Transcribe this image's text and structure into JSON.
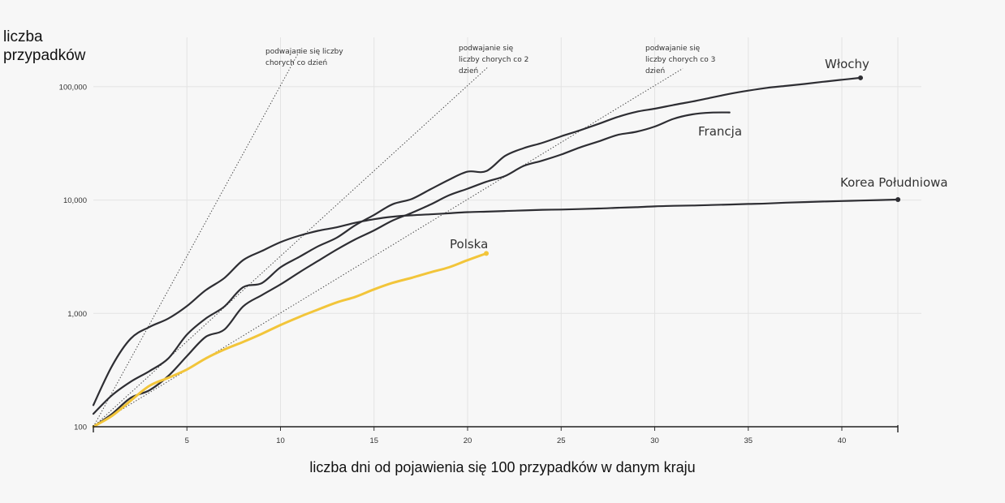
{
  "chart_data": {
    "type": "line",
    "ylabel": "liczba\nprzypadków",
    "xlabel": "liczba dni od pojawienia się 100 przypadków w danym kraju",
    "y_scale": "log",
    "ylim": [
      100,
      200000
    ],
    "xlim": [
      0,
      43
    ],
    "x_ticks": [
      5,
      10,
      15,
      20,
      25,
      30,
      35,
      40
    ],
    "y_ticks": [
      {
        "value": 100,
        "label": "100"
      },
      {
        "value": 1000,
        "label": "1,000"
      },
      {
        "value": 10000,
        "label": "10,000"
      },
      {
        "value": 100000,
        "label": "100,000"
      }
    ],
    "grid": true,
    "series": [
      {
        "name": "Włochy",
        "color": "#2e2e33",
        "end_marker": true,
        "x": [
          0,
          1,
          2,
          3,
          4,
          5,
          6,
          7,
          8,
          9,
          10,
          11,
          12,
          13,
          14,
          15,
          16,
          17,
          18,
          19,
          20,
          21,
          22,
          23,
          24,
          25,
          26,
          27,
          28,
          29,
          30,
          31,
          32,
          33,
          34,
          35,
          36,
          37,
          38,
          39,
          40,
          41
        ],
        "y": [
          130,
          190,
          250,
          310,
          400,
          650,
          900,
          1150,
          1700,
          1850,
          2550,
          3150,
          3900,
          4650,
          6000,
          7400,
          9200,
          10200,
          12400,
          15100,
          17800,
          18000,
          24500,
          28700,
          32000,
          36500,
          41200,
          47000,
          54000,
          60000,
          64000,
          69000,
          74000,
          80000,
          86500,
          92400,
          97700,
          101700,
          105800,
          110500,
          115200,
          119800
        ]
      },
      {
        "name": "Francja",
        "color": "#2e2e33",
        "x": [
          0,
          1,
          2,
          3,
          4,
          5,
          6,
          7,
          8,
          9,
          10,
          11,
          12,
          13,
          14,
          15,
          16,
          17,
          18,
          19,
          20,
          21,
          22,
          23,
          24,
          25,
          26,
          27,
          28,
          29,
          30,
          31,
          32,
          33,
          34
        ],
        "y": [
          100,
          130,
          180,
          210,
          280,
          420,
          620,
          720,
          1150,
          1450,
          1800,
          2300,
          2900,
          3650,
          4500,
          5400,
          6600,
          7700,
          9100,
          11000,
          12600,
          14500,
          16300,
          20000,
          22300,
          25200,
          29100,
          32900,
          37500,
          40000,
          44500,
          52100,
          57000,
          59100,
          59300
        ]
      },
      {
        "name": "Korea Południowa",
        "color": "#2e2e33",
        "end_marker": true,
        "x": [
          0,
          1,
          2,
          3,
          4,
          5,
          6,
          7,
          8,
          9,
          10,
          11,
          12,
          13,
          14,
          15,
          16,
          17,
          18,
          19,
          20,
          21,
          22,
          23,
          24,
          25,
          26,
          27,
          28,
          29,
          30,
          31,
          32,
          33,
          34,
          35,
          36,
          37,
          38,
          39,
          40,
          41,
          42,
          43
        ],
        "y": [
          155,
          345,
          600,
          760,
          900,
          1160,
          1600,
          2050,
          2950,
          3550,
          4250,
          4850,
          5350,
          5750,
          6300,
          6780,
          7130,
          7340,
          7480,
          7650,
          7820,
          7900,
          8000,
          8100,
          8200,
          8250,
          8330,
          8420,
          8550,
          8650,
          8800,
          8900,
          8950,
          9050,
          9130,
          9240,
          9330,
          9480,
          9600,
          9700,
          9800,
          9900,
          10000,
          10100
        ]
      },
      {
        "name": "Polska",
        "color": "#f2c53a",
        "end_marker": true,
        "x": [
          0,
          1,
          2,
          3,
          4,
          5,
          6,
          7,
          8,
          9,
          10,
          11,
          12,
          13,
          14,
          15,
          16,
          17,
          18,
          19,
          20,
          21
        ],
        "y": [
          100,
          125,
          170,
          230,
          270,
          320,
          400,
          480,
          560,
          660,
          790,
          930,
          1080,
          1250,
          1400,
          1630,
          1860,
          2060,
          2300,
          2550,
          2950,
          3380
        ]
      }
    ],
    "doubling_lines": [
      {
        "label": "podwajanie się liczby chorych co dzień",
        "days": 1,
        "x_end": 11.1
      },
      {
        "label": "podwajanie się liczby chorych co 2 dzień",
        "days": 2,
        "x_end": 21.1
      },
      {
        "label": "podwajanie się liczby chorych co 3 dzień",
        "days": 3,
        "x_end": 31.5
      }
    ]
  }
}
